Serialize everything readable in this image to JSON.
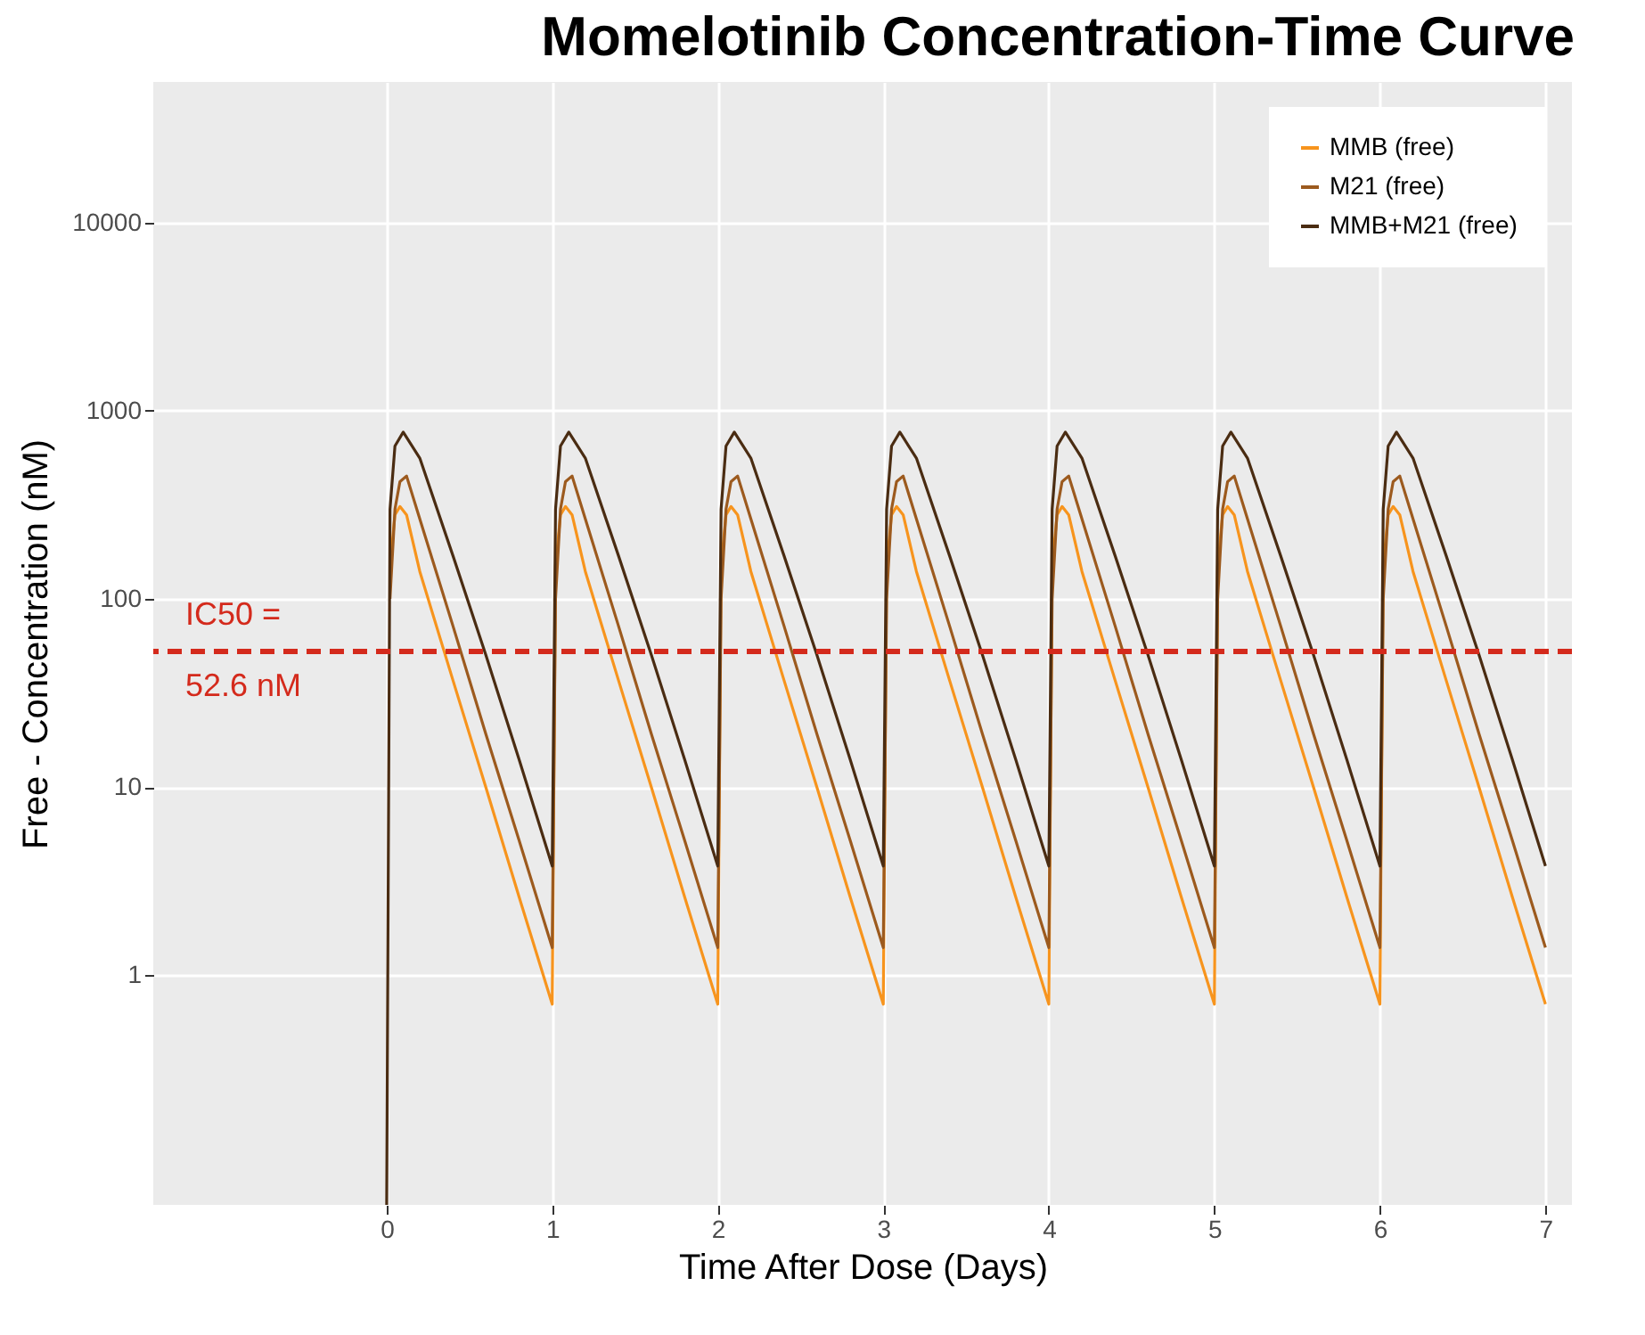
{
  "chart_data": {
    "type": "line",
    "title": "Momelotinib Concentration-Time Curve",
    "xlabel": "Time After Dose (Days)",
    "ylabel": "Free - Concentration (nM)",
    "series": [
      {
        "name": "MMB (free)",
        "color": "#f7941d",
        "x": [
          0.02,
          0.05,
          0.08,
          0.12,
          0.2,
          0.4,
          0.6,
          0.8,
          1,
          1.02,
          1.05,
          1.08,
          1.12,
          1.2,
          1.4,
          1.6,
          1.8,
          2,
          2.02,
          2.05,
          2.08,
          2.12,
          2.2,
          2.4,
          2.6,
          2.8,
          3,
          3.02,
          3.05,
          3.08,
          3.12,
          3.2,
          3.4,
          3.6,
          3.8,
          4,
          4.02,
          4.05,
          4.08,
          4.12,
          4.2,
          4.4,
          4.6,
          4.8,
          5,
          5.02,
          5.05,
          5.08,
          5.12,
          5.2,
          5.4,
          5.6,
          5.8,
          6,
          6.02,
          6.05,
          6.08,
          6.12,
          6.2,
          6.4,
          6.6,
          6.8,
          7
        ],
        "values": [
          150,
          280,
          310,
          280,
          140,
          37,
          9.9,
          2.6,
          0.7,
          150,
          280,
          310,
          280,
          140,
          37,
          9.9,
          2.6,
          0.7,
          150,
          280,
          310,
          280,
          140,
          37,
          9.9,
          2.6,
          0.7,
          150,
          280,
          310,
          280,
          140,
          37,
          9.9,
          2.6,
          0.7,
          150,
          280,
          310,
          280,
          140,
          37,
          9.9,
          2.6,
          0.7,
          150,
          280,
          310,
          280,
          140,
          37,
          9.9,
          2.6,
          0.7,
          150,
          280,
          310,
          280,
          140,
          37,
          9.9,
          2.6,
          0.7
        ]
      },
      {
        "name": "M21 (free)",
        "color": "#9c5a1e",
        "x": [
          0.02,
          0.05,
          0.08,
          0.12,
          0.2,
          0.4,
          0.6,
          0.8,
          1,
          1.02,
          1.05,
          1.08,
          1.12,
          1.2,
          1.4,
          1.6,
          1.8,
          2,
          2.02,
          2.05,
          2.08,
          2.12,
          2.2,
          2.4,
          2.6,
          2.8,
          3,
          3.02,
          3.05,
          3.08,
          3.12,
          3.2,
          3.4,
          3.6,
          3.8,
          4,
          4.02,
          4.05,
          4.08,
          4.12,
          4.2,
          4.4,
          4.6,
          4.8,
          5,
          5.02,
          5.05,
          5.08,
          5.12,
          5.2,
          5.4,
          5.6,
          5.8,
          6,
          6.02,
          6.05,
          6.08,
          6.12,
          6.2,
          6.4,
          6.6,
          6.8,
          7
        ],
        "values": [
          100,
          300,
          420,
          450,
          266,
          72,
          19,
          5.2,
          1.4,
          100,
          300,
          420,
          450,
          266,
          72,
          19,
          5.2,
          1.4,
          100,
          300,
          420,
          450,
          266,
          72,
          19,
          5.2,
          1.4,
          100,
          300,
          420,
          450,
          266,
          72,
          19,
          5.2,
          1.4,
          100,
          300,
          420,
          450,
          266,
          72,
          19,
          5.2,
          1.4,
          100,
          300,
          420,
          450,
          266,
          72,
          19,
          5.2,
          1.4,
          100,
          300,
          420,
          450,
          266,
          72,
          19,
          5.2,
          1.4
        ]
      },
      {
        "name": "MMB+M21 (free)",
        "color": "#4a2c12",
        "x": [
          0,
          0.02,
          0.05,
          0.1,
          0.2,
          0.4,
          0.6,
          0.8,
          1,
          1.02,
          1.05,
          1.1,
          1.2,
          1.4,
          1.6,
          1.8,
          2,
          2.02,
          2.05,
          2.1,
          2.2,
          2.4,
          2.6,
          2.8,
          3,
          3.02,
          3.05,
          3.1,
          3.2,
          3.4,
          3.6,
          3.8,
          4,
          4.02,
          4.05,
          4.1,
          4.2,
          4.4,
          4.6,
          4.8,
          5,
          5.02,
          5.05,
          5.1,
          5.2,
          5.4,
          5.6,
          5.8,
          6,
          6.02,
          6.05,
          6.1,
          6.2,
          6.4,
          6.6,
          6.8,
          7
        ],
        "values": [
          0.06,
          300,
          650,
          770,
          560,
          170,
          50,
          14,
          3.8,
          300,
          650,
          770,
          560,
          170,
          50,
          14,
          3.8,
          300,
          650,
          770,
          560,
          170,
          50,
          14,
          3.8,
          300,
          650,
          770,
          560,
          170,
          50,
          14,
          3.8,
          300,
          650,
          770,
          560,
          170,
          50,
          14,
          3.8,
          300,
          650,
          770,
          560,
          170,
          50,
          14,
          3.8,
          300,
          650,
          770,
          560,
          170,
          50,
          14,
          3.8
        ]
      }
    ],
    "xlim": [
      -1.41,
      7.16
    ],
    "xticks": [
      0,
      1,
      2,
      3,
      4,
      5,
      6,
      7
    ],
    "ylim": [
      0.06,
      56000
    ],
    "yticks": [
      1,
      10,
      100,
      1000,
      10000
    ],
    "log": "y",
    "ref_lines": [
      {
        "axis": "y",
        "value": 52.6,
        "label": "IC50 =\n52.6 nM",
        "color": "#d42a1c",
        "line_style": "dashed"
      }
    ],
    "grid": true,
    "legend": "top right",
    "marker": "none",
    "line_style": "solid"
  }
}
